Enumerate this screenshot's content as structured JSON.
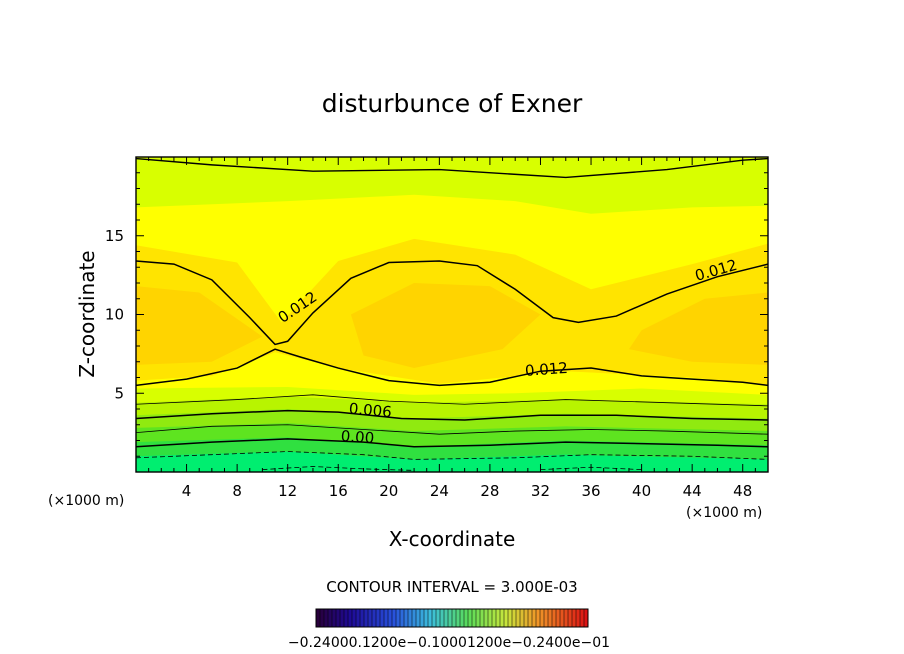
{
  "chart_data": {
    "type": "heatmap",
    "title": "disturbunce of Exner",
    "xlabel": "X-coordinate",
    "ylabel": "Z-coordinate",
    "x_unit": "(×1000 m)",
    "z_unit": "(×1000 m)",
    "xlim": [
      0,
      50
    ],
    "ylim": [
      0,
      20
    ],
    "x_ticks": [
      "4",
      "8",
      "12",
      "16",
      "20",
      "24",
      "28",
      "32",
      "36",
      "40",
      "44",
      "48"
    ],
    "y_ticks": [
      "5",
      "10",
      "15"
    ],
    "contour_interval": "CONTOUR INTERVAL = 3.000E-03",
    "contour_labels": [
      {
        "text": "0.012",
        "x": 13,
        "z": 10.2,
        "angle": -34
      },
      {
        "text": "0.012",
        "x": 46,
        "z": 12.5,
        "angle": -16
      },
      {
        "text": "0.012",
        "x": 32.5,
        "z": 6.2,
        "angle": -4
      },
      {
        "text": "0.006",
        "x": 18.5,
        "z": 3.6,
        "angle": 5
      },
      {
        "text": "0.00",
        "x": 17.5,
        "z": 1.9,
        "angle": 4
      }
    ],
    "colorbar": {
      "labels": [
        "-0.2400e-01",
        "-0.1200e-01",
        "0.0",
        "0.1200e-01",
        "0.2400e-01"
      ],
      "label_text": "−0.24000.1200e−0.10001200e−0.2400e−01",
      "range": [
        -0.024,
        0.024
      ]
    },
    "colors": {
      "yellow_green": "#d8ff00",
      "yellow": "#ffff00",
      "gold": "#ffe400",
      "orange_gold": "#ffd400",
      "green": "#00ee70"
    }
  }
}
